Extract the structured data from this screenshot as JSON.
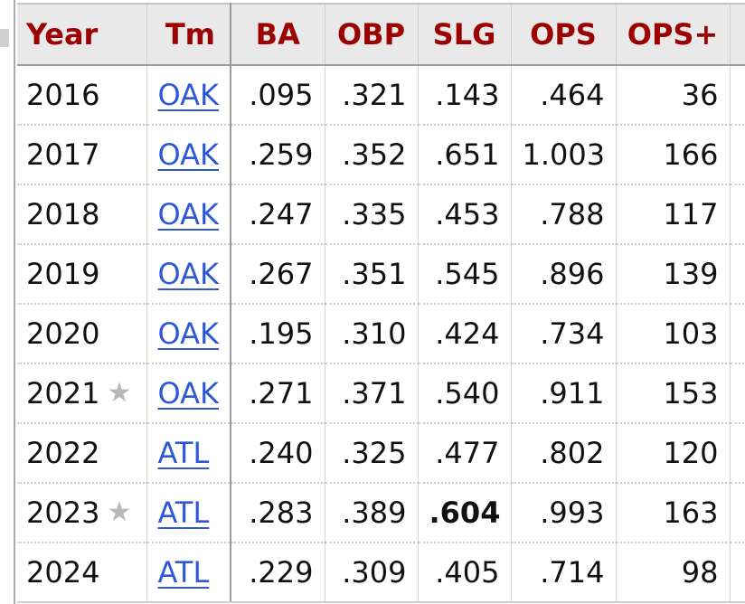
{
  "columns": {
    "year": "Year",
    "team": "Tm",
    "ba": "BA",
    "obp": "OBP",
    "slg": "SLG",
    "ops": "OPS",
    "ops_plus": "OPS+"
  },
  "rows": [
    {
      "year": "2016",
      "star": "",
      "team": "OAK",
      "ba": ".095",
      "obp": ".321",
      "slg": ".143",
      "ops": ".464",
      "ops_plus": "36"
    },
    {
      "year": "2017",
      "star": "",
      "team": "OAK",
      "ba": ".259",
      "obp": ".352",
      "slg": ".651",
      "ops": "1.003",
      "ops_plus": "166"
    },
    {
      "year": "2018",
      "star": "",
      "team": "OAK",
      "ba": ".247",
      "obp": ".335",
      "slg": ".453",
      "ops": ".788",
      "ops_plus": "117"
    },
    {
      "year": "2019",
      "star": "",
      "team": "OAK",
      "ba": ".267",
      "obp": ".351",
      "slg": ".545",
      "ops": ".896",
      "ops_plus": "139"
    },
    {
      "year": "2020",
      "star": "",
      "team": "OAK",
      "ba": ".195",
      "obp": ".310",
      "slg": ".424",
      "ops": ".734",
      "ops_plus": "103"
    },
    {
      "year": "2021",
      "star": "★",
      "team": "OAK",
      "ba": ".271",
      "obp": ".371",
      "slg": ".540",
      "ops": ".911",
      "ops_plus": "153"
    },
    {
      "year": "2022",
      "star": "",
      "team": "ATL",
      "ba": ".240",
      "obp": ".325",
      "slg": ".477",
      "ops": ".802",
      "ops_plus": "120"
    },
    {
      "year": "2023",
      "star": "★",
      "team": "ATL",
      "ba": ".283",
      "obp": ".389",
      "slg": ".604",
      "ops": ".993",
      "ops_plus": "163"
    },
    {
      "year": "2024",
      "star": "",
      "team": "ATL",
      "ba": ".229",
      "obp": ".309",
      "slg": ".405",
      "ops": ".714",
      "ops_plus": "98"
    }
  ],
  "league_leader": {
    "year": "2023",
    "stat": "slg"
  },
  "icons": {
    "all_star": "star-icon"
  },
  "colors": {
    "header_text": "#9d0000",
    "header_bg": "#e9e9e9",
    "link": "#2e59d6",
    "star": "#b8b8b8"
  }
}
